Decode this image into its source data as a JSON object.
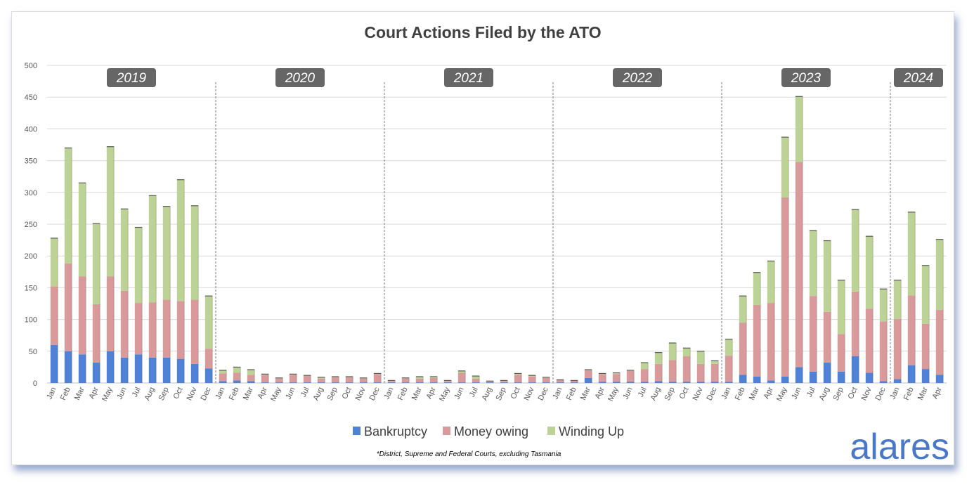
{
  "chart_data": {
    "type": "bar",
    "stacked": true,
    "title": "Court Actions Filed by the ATO",
    "footnote": "*District, Supreme and Federal Courts, excluding Tasmania",
    "logo_text": "alares",
    "ylim": [
      0,
      500
    ],
    "yticks": [
      0,
      50,
      100,
      150,
      200,
      250,
      300,
      350,
      400,
      450,
      500
    ],
    "grid": true,
    "legend_position": "bottom",
    "years": [
      {
        "label": "2019",
        "months": 12
      },
      {
        "label": "2020",
        "months": 12
      },
      {
        "label": "2021",
        "months": 12
      },
      {
        "label": "2022",
        "months": 12
      },
      {
        "label": "2023",
        "months": 12
      },
      {
        "label": "2024",
        "months": 4
      }
    ],
    "categories": [
      "Jan",
      "Feb",
      "Mar",
      "Apr",
      "May",
      "Jun",
      "Jul",
      "Aug",
      "Sep",
      "Oct",
      "Nov",
      "Dec",
      "Jan",
      "Feb",
      "Mar",
      "Apr",
      "May",
      "Jun",
      "Jul",
      "Aug",
      "Sep",
      "Oct",
      "Nov",
      "Dec",
      "Jan",
      "Feb",
      "Mar",
      "Apr",
      "May",
      "Jun",
      "Jul",
      "Aug",
      "Sep",
      "Oct",
      "Nov",
      "Dec",
      "Jan",
      "Feb",
      "Mar",
      "Apr",
      "May",
      "Jun",
      "Jul",
      "Aug",
      "Sep",
      "Oct",
      "Nov",
      "Dec",
      "Jan",
      "Feb",
      "Mar",
      "Apr",
      "May",
      "Jun",
      "Jul",
      "Aug",
      "Sep",
      "Oct",
      "Nov",
      "Dec",
      "Jan",
      "Feb",
      "Mar",
      "Apr"
    ],
    "series": [
      {
        "name": "Bankruptcy",
        "color": "#4f81d4",
        "values": [
          60,
          50,
          45,
          32,
          50,
          40,
          45,
          40,
          40,
          38,
          30,
          23,
          3,
          4,
          3,
          1,
          1,
          1,
          1,
          1,
          1,
          1,
          1,
          1,
          1,
          1,
          1,
          1,
          1,
          1,
          1,
          1,
          1,
          1,
          1,
          1,
          1,
          1,
          8,
          2,
          2,
          2,
          2,
          3,
          2,
          2,
          2,
          2,
          2,
          13,
          10,
          4,
          10,
          25,
          18,
          32,
          18,
          42,
          16,
          3,
          6,
          28,
          22,
          13
        ]
      },
      {
        "name": "Money owing",
        "color": "#d89a9a",
        "values": [
          92,
          138,
          123,
          92,
          118,
          105,
          81,
          87,
          91,
          91,
          101,
          31,
          12,
          12,
          10,
          12,
          6,
          12,
          10,
          6,
          8,
          8,
          6,
          13,
          2,
          6,
          6,
          7,
          2,
          15,
          6,
          1,
          2,
          12,
          9,
          7,
          4,
          3,
          12,
          12,
          12,
          17,
          20,
          27,
          34,
          40,
          28,
          28,
          41,
          82,
          113,
          122,
          282,
          323,
          119,
          80,
          59,
          102,
          101,
          94,
          95,
          110,
          71,
          102
        ]
      },
      {
        "name": "Winding Up",
        "color": "#bcd395",
        "values": [
          76,
          182,
          147,
          127,
          204,
          129,
          119,
          168,
          147,
          191,
          148,
          83,
          5,
          9,
          8,
          1,
          1,
          1,
          1,
          2,
          1,
          1,
          1,
          1,
          1,
          1,
          3,
          2,
          1,
          3,
          4,
          1,
          1,
          2,
          2,
          1,
          0,
          0,
          1,
          1,
          2,
          1,
          10,
          18,
          27,
          13,
          20,
          5,
          26,
          42,
          51,
          66,
          95,
          103,
          103,
          112,
          85,
          129,
          114,
          51,
          61,
          131,
          92,
          111
        ]
      }
    ]
  }
}
